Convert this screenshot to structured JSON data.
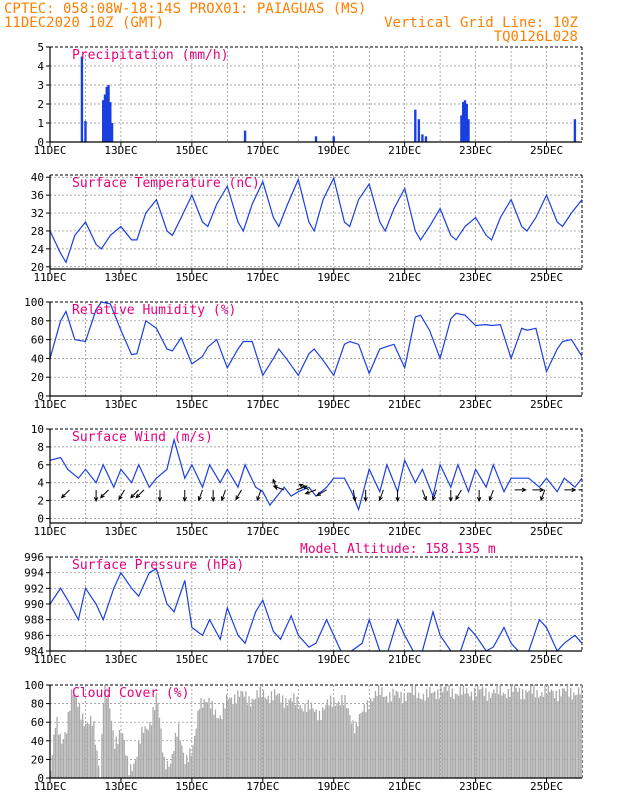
{
  "header": {
    "left_line1": "CPTEC:   058:08W-18:14S   PROX01: PAIAGUAS (MS)",
    "left_line2": "11DEC2020 10Z (GMT)",
    "right_line1": "Vertical Grid Line: 10Z",
    "right_line2": "TQ0126L028",
    "color": "#ff7f00"
  },
  "colors": {
    "title": "#e8007a",
    "line": "#1a3fe0",
    "bar": "#1a3fe0",
    "cloud": "#a9a9a9",
    "arrow": "#000000"
  },
  "x_ticks": [
    "11DEC",
    "13DEC",
    "15DEC",
    "17DEC",
    "19DEC",
    "21DEC",
    "23DEC",
    "25DEC"
  ],
  "x_range_days": [
    11,
    26
  ],
  "chart_data": [
    {
      "id": "precip",
      "type": "bar",
      "title": "Precipitation (mm/h)",
      "ylim": [
        0,
        5
      ],
      "yticks": [
        0,
        1,
        2,
        3,
        4,
        5
      ],
      "x": [
        11.9,
        12.0,
        12.5,
        12.55,
        12.6,
        12.65,
        12.7,
        12.75,
        16.5,
        18.5,
        19.0,
        21.3,
        21.4,
        21.5,
        21.6,
        22.6,
        22.65,
        22.7,
        22.75,
        22.8,
        25.8
      ],
      "values": [
        4.5,
        1.1,
        2.2,
        2.5,
        2.9,
        3.0,
        2.1,
        1.0,
        0.6,
        0.3,
        0.3,
        1.7,
        1.2,
        0.4,
        0.3,
        1.4,
        2.1,
        2.2,
        2.0,
        1.2,
        1.2
      ]
    },
    {
      "id": "temp",
      "type": "line",
      "title": "Surface Temperature (nC)",
      "ylim": [
        19.5,
        40.5
      ],
      "yticks": [
        20,
        24,
        28,
        32,
        36,
        40
      ],
      "x": [
        11.0,
        11.3,
        11.45,
        11.7,
        12.0,
        12.3,
        12.45,
        12.7,
        13.0,
        13.3,
        13.45,
        13.7,
        14.0,
        14.3,
        14.45,
        14.7,
        15.0,
        15.3,
        15.45,
        15.7,
        16.0,
        16.3,
        16.45,
        16.7,
        17.0,
        17.3,
        17.45,
        17.7,
        18.0,
        18.3,
        18.45,
        18.7,
        19.0,
        19.3,
        19.45,
        19.7,
        20.0,
        20.3,
        20.45,
        20.7,
        21.0,
        21.3,
        21.45,
        21.7,
        22.0,
        22.3,
        22.45,
        22.7,
        23.0,
        23.3,
        23.45,
        23.7,
        24.0,
        24.3,
        24.45,
        24.7,
        25.0,
        25.3,
        25.45,
        25.7,
        26.0
      ],
      "values": [
        28,
        23,
        21,
        27,
        30,
        25,
        24,
        27,
        29,
        26,
        26,
        32,
        35,
        28,
        27,
        31,
        36,
        30,
        29,
        34,
        38,
        30,
        28,
        34,
        39,
        31,
        29,
        34,
        39.5,
        30,
        28,
        35,
        39.8,
        30,
        29,
        35,
        38.5,
        30,
        28,
        33,
        37.5,
        28,
        26,
        29,
        33,
        27,
        26,
        29,
        31,
        27,
        26,
        31,
        35,
        29,
        28,
        31,
        36,
        30,
        29,
        32,
        35
      ]
    },
    {
      "id": "rh",
      "type": "line",
      "title": "Relative Humidity (%)",
      "ylim": [
        0,
        100
      ],
      "yticks": [
        0,
        20,
        40,
        60,
        80,
        100
      ],
      "x": [
        11.0,
        11.3,
        11.45,
        11.7,
        12.0,
        12.3,
        12.45,
        12.7,
        13.0,
        13.3,
        13.45,
        13.7,
        14.0,
        14.3,
        14.45,
        14.7,
        15.0,
        15.3,
        15.45,
        15.7,
        16.0,
        16.3,
        16.45,
        16.7,
        17.0,
        17.3,
        17.45,
        17.7,
        18.0,
        18.3,
        18.45,
        18.7,
        19.0,
        19.3,
        19.45,
        19.7,
        20.0,
        20.3,
        20.45,
        20.7,
        21.0,
        21.3,
        21.45,
        21.7,
        22.0,
        22.3,
        22.45,
        22.7,
        23.0,
        23.3,
        23.45,
        23.7,
        24.0,
        24.3,
        24.45,
        24.7,
        25.0,
        25.3,
        25.45,
        25.7,
        26.0
      ],
      "values": [
        40,
        80,
        90,
        60,
        58,
        92,
        100,
        98,
        70,
        44,
        45,
        80,
        72,
        50,
        48,
        62,
        34,
        42,
        52,
        60,
        30,
        50,
        58,
        58,
        22,
        40,
        50,
        38,
        22,
        45,
        50,
        38,
        22,
        55,
        58,
        55,
        24,
        50,
        52,
        55,
        30,
        84,
        86,
        70,
        40,
        82,
        88,
        86,
        75,
        76,
        75,
        76,
        40,
        72,
        70,
        72,
        26,
        50,
        58,
        60,
        42
      ]
    },
    {
      "id": "wind",
      "type": "line",
      "title": "Surface Wind (m/s)",
      "ylim": [
        -0.5,
        10
      ],
      "yticks": [
        0,
        2,
        4,
        6,
        8,
        10
      ],
      "x": [
        11.0,
        11.3,
        11.5,
        11.8,
        12.0,
        12.3,
        12.5,
        12.8,
        13.0,
        13.3,
        13.5,
        13.8,
        14.0,
        14.3,
        14.5,
        14.7,
        14.8,
        15.0,
        15.3,
        15.5,
        15.8,
        16.0,
        16.3,
        16.5,
        16.8,
        17.0,
        17.2,
        17.4,
        17.6,
        17.8,
        18.0,
        18.3,
        18.5,
        18.8,
        19.0,
        19.3,
        19.5,
        19.7,
        20.0,
        20.3,
        20.5,
        20.8,
        21.0,
        21.3,
        21.5,
        21.8,
        22.0,
        22.3,
        22.5,
        22.8,
        23.0,
        23.3,
        23.5,
        23.8,
        24.0,
        24.3,
        24.5,
        24.8,
        25.0,
        25.3,
        25.5,
        25.8,
        26.0
      ],
      "values": [
        6.5,
        6.8,
        5.5,
        4.5,
        5.5,
        4.0,
        6.0,
        3.5,
        5.5,
        4.0,
        6.0,
        3.5,
        4.5,
        5.5,
        8.8,
        6.0,
        4.5,
        6.0,
        3.5,
        6.0,
        4.0,
        5.5,
        3.5,
        6.0,
        3.5,
        3.0,
        1.5,
        2.5,
        3.5,
        2.5,
        3.0,
        3.5,
        2.5,
        3.5,
        4.5,
        4.5,
        3.0,
        1.0,
        5.5,
        3.0,
        6.0,
        3.0,
        6.5,
        4.0,
        5.5,
        2.5,
        6.0,
        3.5,
        6.0,
        3.0,
        5.5,
        3.5,
        6.0,
        3.0,
        4.5,
        4.5,
        4.5,
        3.5,
        4.5,
        3.0,
        4.5,
        3.5,
        4.5
      ]
    },
    {
      "id": "pressure",
      "type": "line",
      "title": "Surface Pressure (hPa)",
      "annotation": "Model Altitude: 158.135 m",
      "ylim": [
        984,
        996
      ],
      "yticks": [
        984,
        986,
        988,
        990,
        992,
        994,
        996
      ],
      "x": [
        11.0,
        11.3,
        11.5,
        11.8,
        12.0,
        12.3,
        12.5,
        12.8,
        13.0,
        13.3,
        13.5,
        13.8,
        14.0,
        14.3,
        14.5,
        14.8,
        15.0,
        15.3,
        15.5,
        15.8,
        16.0,
        16.3,
        16.5,
        16.8,
        17.0,
        17.3,
        17.5,
        17.8,
        18.0,
        18.3,
        18.5,
        18.8,
        19.0,
        19.3,
        19.5,
        19.8,
        20.0,
        20.3,
        20.5,
        20.8,
        21.0,
        21.3,
        21.5,
        21.8,
        22.0,
        22.3,
        22.5,
        22.8,
        23.0,
        23.3,
        23.5,
        23.8,
        24.0,
        24.3,
        24.5,
        24.8,
        25.0,
        25.3,
        25.5,
        25.8,
        26.0
      ],
      "values": [
        990,
        992,
        990.5,
        988,
        992,
        990,
        988,
        992,
        994,
        992,
        991,
        994,
        994.5,
        990,
        989,
        993,
        987,
        986,
        988,
        985.5,
        989.5,
        986,
        985,
        989,
        990.5,
        986.5,
        985.5,
        988.5,
        986,
        984.5,
        985,
        988,
        986,
        983,
        984,
        985,
        988,
        984,
        983.5,
        988,
        986,
        983.5,
        984,
        989,
        986,
        984,
        983,
        987,
        986,
        984,
        984.5,
        987,
        985,
        983.5,
        984,
        988,
        987,
        984,
        985,
        986,
        985
      ]
    },
    {
      "id": "cloud",
      "type": "area",
      "title": "Cloud Cover (%)",
      "ylim": [
        0,
        100
      ],
      "yticks": [
        0,
        20,
        40,
        60,
        80,
        100
      ],
      "x": [
        11.0,
        11.15,
        11.3,
        11.45,
        11.6,
        11.8,
        12.0,
        12.2,
        12.4,
        12.5,
        12.65,
        12.8,
        13.0,
        13.2,
        13.4,
        13.6,
        13.8,
        14.0,
        14.2,
        14.4,
        14.6,
        14.8,
        15.0,
        15.2,
        15.4,
        15.6,
        15.8,
        16.0,
        16.3,
        16.6,
        17.0,
        17.3,
        17.6,
        18.0,
        18.3,
        18.6,
        19.0,
        19.3,
        19.6,
        20.0,
        20.3,
        20.6,
        21.0,
        21.3,
        21.6,
        22.0,
        22.3,
        22.6,
        23.0,
        23.4,
        23.8,
        24.2,
        24.6,
        25.0,
        25.4,
        25.8,
        26.0
      ],
      "values": [
        10,
        60,
        40,
        55,
        90,
        80,
        55,
        60,
        5,
        95,
        80,
        40,
        50,
        10,
        20,
        50,
        60,
        85,
        20,
        15,
        55,
        20,
        25,
        85,
        80,
        75,
        65,
        85,
        90,
        85,
        90,
        88,
        85,
        80,
        75,
        70,
        85,
        80,
        55,
        85,
        92,
        88,
        90,
        92,
        88,
        95,
        93,
        92,
        93,
        92,
        93,
        94,
        92,
        93,
        92,
        93,
        92
      ]
    }
  ],
  "wind_arrows": [
    {
      "x": 11.55,
      "dir": 225
    },
    {
      "x": 12.3,
      "dir": 180
    },
    {
      "x": 12.65,
      "dir": 225
    },
    {
      "x": 13.1,
      "dir": 210
    },
    {
      "x": 13.5,
      "dir": 225
    },
    {
      "x": 13.65,
      "dir": 225
    },
    {
      "x": 14.1,
      "dir": 180
    },
    {
      "x": 14.8,
      "dir": 180
    },
    {
      "x": 15.3,
      "dir": 200
    },
    {
      "x": 15.6,
      "dir": 180
    },
    {
      "x": 15.95,
      "dir": 200
    },
    {
      "x": 16.4,
      "dir": 210
    },
    {
      "x": 16.95,
      "dir": 200
    },
    {
      "x": 17.4,
      "dir": 340
    },
    {
      "x": 17.6,
      "dir": 290
    },
    {
      "x": 17.95,
      "dir": 70
    },
    {
      "x": 18.3,
      "dir": 300
    },
    {
      "x": 18.5,
      "dir": 250
    },
    {
      "x": 18.8,
      "dir": 240
    },
    {
      "x": 19.55,
      "dir": 170
    },
    {
      "x": 19.9,
      "dir": 180
    },
    {
      "x": 20.4,
      "dir": 200
    },
    {
      "x": 20.8,
      "dir": 180
    },
    {
      "x": 21.5,
      "dir": 160
    },
    {
      "x": 21.9,
      "dir": 200
    },
    {
      "x": 22.3,
      "dir": 180
    },
    {
      "x": 22.6,
      "dir": 210
    },
    {
      "x": 23.1,
      "dir": 180
    },
    {
      "x": 23.5,
      "dir": 200
    },
    {
      "x": 24.1,
      "dir": 90
    },
    {
      "x": 24.6,
      "dir": 90
    },
    {
      "x": 24.95,
      "dir": 200
    },
    {
      "x": 25.5,
      "dir": 90
    },
    {
      "x": 25.9,
      "dir": 90
    }
  ]
}
